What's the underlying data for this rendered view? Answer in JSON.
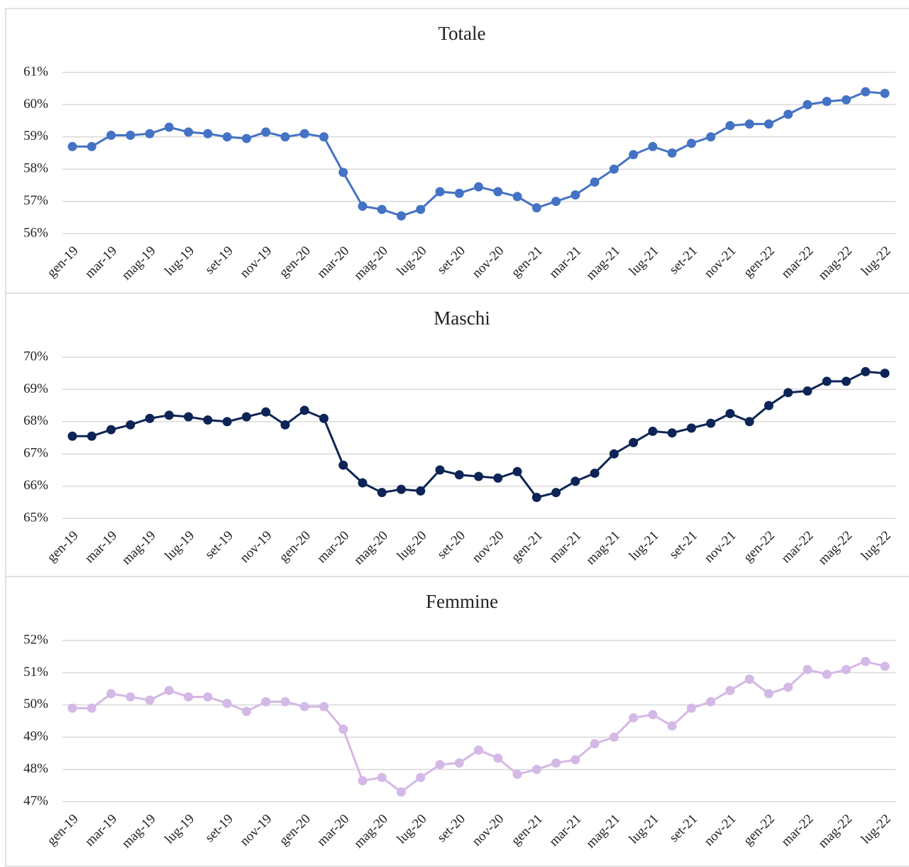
{
  "chart_data": [
    {
      "type": "line",
      "title": "Totale",
      "categories": [
        "gen-19",
        null,
        "mar-19",
        null,
        "mag-19",
        null,
        "lug-19",
        null,
        "set-19",
        null,
        "nov-19",
        null,
        "gen-20",
        null,
        "mar-20",
        null,
        "mag-20",
        null,
        "lug-20",
        null,
        "set-20",
        null,
        "nov-20",
        null,
        "gen-21",
        null,
        "mar-21",
        null,
        "mag-21",
        null,
        "lug-21",
        null,
        "set-21",
        null,
        "nov-21",
        null,
        "gen-22",
        null,
        "mar-22",
        null,
        "mag-22",
        null,
        "lug-22"
      ],
      "series": [
        {
          "color": "#4472c4",
          "values": [
            58.7,
            58.7,
            59.05,
            59.05,
            59.1,
            59.3,
            59.15,
            59.1,
            59.0,
            58.95,
            59.15,
            59.0,
            59.1,
            59.0,
            57.9,
            56.85,
            56.75,
            56.55,
            56.75,
            57.3,
            57.25,
            57.45,
            57.3,
            57.15,
            56.8,
            57.0,
            57.2,
            57.6,
            58.0,
            58.45,
            58.7,
            58.5,
            58.8,
            59.0,
            59.35,
            59.4,
            59.4,
            59.7,
            60.0,
            60.1,
            60.15,
            60.4,
            60.35
          ]
        }
      ],
      "ylim": [
        56,
        61
      ],
      "yticks": [
        {
          "value": 56,
          "label": "56%"
        },
        {
          "value": 57,
          "label": "57%"
        },
        {
          "value": 58,
          "label": "58%"
        },
        {
          "value": 59,
          "label": "59%"
        },
        {
          "value": 60,
          "label": "60%"
        },
        {
          "value": 61,
          "label": "61%"
        }
      ],
      "grid": true
    },
    {
      "type": "line",
      "title": "Maschi",
      "categories": [
        "gen-19",
        null,
        "mar-19",
        null,
        "mag-19",
        null,
        "lug-19",
        null,
        "set-19",
        null,
        "nov-19",
        null,
        "gen-20",
        null,
        "mar-20",
        null,
        "mag-20",
        null,
        "lug-20",
        null,
        "set-20",
        null,
        "nov-20",
        null,
        "gen-21",
        null,
        "mar-21",
        null,
        "mag-21",
        null,
        "lug-21",
        null,
        "set-21",
        null,
        "nov-21",
        null,
        "gen-22",
        null,
        "mar-22",
        null,
        "mag-22",
        null,
        "lug-22"
      ],
      "series": [
        {
          "color": "#0d2456",
          "values": [
            67.55,
            67.55,
            67.75,
            67.9,
            68.1,
            68.2,
            68.15,
            68.05,
            68.0,
            68.15,
            68.3,
            67.9,
            68.35,
            68.1,
            66.65,
            66.1,
            65.8,
            65.9,
            65.85,
            66.5,
            66.35,
            66.3,
            66.25,
            66.45,
            65.65,
            65.8,
            66.15,
            66.4,
            67.0,
            67.35,
            67.7,
            67.65,
            67.8,
            67.95,
            68.25,
            68.0,
            68.5,
            68.9,
            68.95,
            69.25,
            69.25,
            69.55,
            69.5
          ]
        }
      ],
      "ylim": [
        65,
        70
      ],
      "yticks": [
        {
          "value": 65,
          "label": "65%"
        },
        {
          "value": 66,
          "label": "66%"
        },
        {
          "value": 67,
          "label": "67%"
        },
        {
          "value": 68,
          "label": "68%"
        },
        {
          "value": 69,
          "label": "69%"
        },
        {
          "value": 70,
          "label": "70%"
        }
      ],
      "grid": true
    },
    {
      "type": "line",
      "title": "Femmine",
      "categories": [
        "gen-19",
        null,
        "mar-19",
        null,
        "mag-19",
        null,
        "lug-19",
        null,
        "set-19",
        null,
        "nov-19",
        null,
        "gen-20",
        null,
        "mar-20",
        null,
        "mag-20",
        null,
        "lug-20",
        null,
        "set-20",
        null,
        "nov-20",
        null,
        "gen-21",
        null,
        "mar-21",
        null,
        "mag-21",
        null,
        "lug-21",
        null,
        "set-21",
        null,
        "nov-21",
        null,
        "gen-22",
        null,
        "mar-22",
        null,
        "mag-22",
        null,
        "lug-22"
      ],
      "series": [
        {
          "color": "#d4b8e6",
          "values": [
            49.9,
            49.9,
            50.35,
            50.25,
            50.15,
            50.45,
            50.25,
            50.25,
            50.05,
            49.8,
            50.1,
            50.1,
            49.95,
            49.95,
            49.25,
            47.65,
            47.75,
            47.3,
            47.75,
            48.15,
            48.2,
            48.6,
            48.35,
            47.85,
            48.0,
            48.2,
            48.3,
            48.8,
            49.0,
            49.6,
            49.7,
            49.35,
            49.9,
            50.1,
            50.45,
            50.8,
            50.35,
            50.55,
            51.1,
            50.95,
            51.1,
            51.35,
            51.2
          ]
        }
      ],
      "ylim": [
        47,
        52
      ],
      "yticks": [
        {
          "value": 47,
          "label": "47%"
        },
        {
          "value": 48,
          "label": "48%"
        },
        {
          "value": 49,
          "label": "49%"
        },
        {
          "value": 50,
          "label": "50%"
        },
        {
          "value": 51,
          "label": "51%"
        },
        {
          "value": 52,
          "label": "52%"
        }
      ],
      "grid": true
    }
  ]
}
